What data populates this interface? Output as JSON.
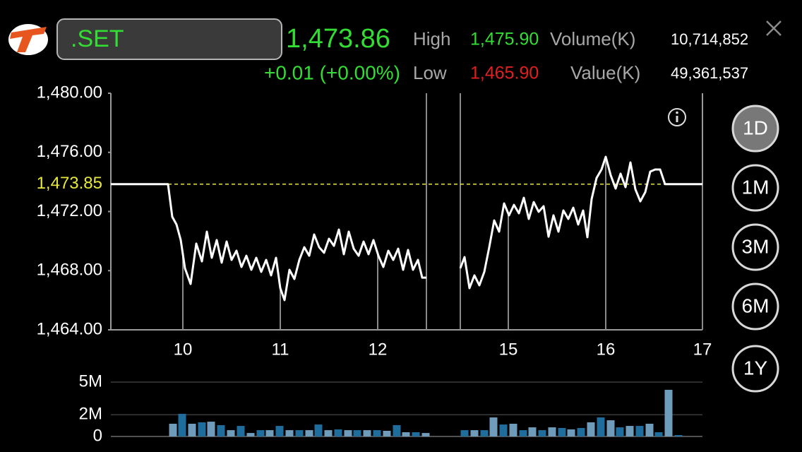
{
  "header": {
    "symbol": ".SET",
    "last": "1,473.86",
    "change": "+0.01 (+0.00%)",
    "high_label": "High",
    "high": "1,475.90",
    "low_label": "Low",
    "low": "1,465.90",
    "volume_label": "Volume(K)",
    "volume": "10,714,852",
    "value_label": "Value(K)",
    "value": "49,361,537"
  },
  "periods": [
    "1D",
    "1M",
    "3M",
    "6M",
    "1Y"
  ],
  "selected_period": "1D",
  "chart_data": [
    {
      "type": "line",
      "color": "#ffffff",
      "x": [
        0,
        81,
        87,
        93,
        99,
        105,
        113,
        121,
        129,
        136,
        143,
        150,
        157,
        164,
        171,
        178,
        185,
        192,
        199,
        206,
        213,
        220,
        227,
        234,
        240,
        246,
        253,
        260,
        267,
        274,
        281,
        288,
        295,
        302,
        309,
        316,
        323,
        330,
        337,
        344,
        351,
        358,
        365,
        372,
        379,
        386,
        393,
        400,
        407,
        414,
        421,
        428,
        435,
        441,
        447,
        null,
        495,
        501,
        508,
        515,
        522,
        529,
        536,
        543,
        550,
        557,
        564,
        571,
        578,
        585,
        592,
        599,
        606,
        613,
        620,
        627,
        634,
        641,
        648,
        655,
        662,
        669,
        675,
        681,
        688,
        695,
        701,
        708,
        715,
        722,
        729,
        736,
        743,
        750,
        757,
        764,
        771,
        778,
        785,
        838
      ],
      "values": [
        1473.85,
        1473.85,
        1471.64,
        1471.12,
        1470.07,
        1468.16,
        1467.1,
        1469.83,
        1468.63,
        1470.64,
        1468.87,
        1470.07,
        1468.54,
        1469.97,
        1468.73,
        1469.35,
        1468.25,
        1469.01,
        1468.06,
        1468.87,
        1467.92,
        1468.73,
        1467.68,
        1468.87,
        1466.82,
        1466.01,
        1468.06,
        1467.44,
        1468.73,
        1469.59,
        1469.01,
        1470.45,
        1469.59,
        1469.21,
        1470.16,
        1469.68,
        1470.78,
        1469.11,
        1470.64,
        1469.49,
        1469.01,
        1469.97,
        1469.11,
        1470.07,
        1469.01,
        1468.25,
        1469.35,
        1468.73,
        1469.49,
        1468.06,
        1469.4,
        1468.06,
        1468.73,
        1467.53,
        1467.53,
        null,
        1468.16,
        1468.92,
        1466.82,
        1467.68,
        1467.01,
        1467.92,
        1469.59,
        1471.4,
        1470.64,
        1472.55,
        1471.74,
        1472.45,
        1471.88,
        1472.93,
        1471.5,
        1472.64,
        1471.98,
        1472.36,
        1470.3,
        1471.74,
        1470.64,
        1472.07,
        1471.5,
        1472.26,
        1471.12,
        1472.07,
        1470.26,
        1472.84,
        1474.27,
        1474.84,
        1475.7,
        1474.46,
        1473.55,
        1474.56,
        1473.65,
        1475.32,
        1473.5,
        1472.69,
        1473.31,
        1474.7,
        1474.84,
        1474.84,
        1473.85,
        1473.85
      ],
      "xlim": [
        0,
        838
      ],
      "xticks": [
        {
          "value": 102,
          "label": "10"
        },
        {
          "value": 240,
          "label": "11"
        },
        {
          "value": 378,
          "label": "12"
        },
        {
          "value": 563,
          "label": "15"
        },
        {
          "value": 701,
          "label": "16"
        },
        {
          "value": 838,
          "label": "17"
        }
      ],
      "ylim": [
        1464,
        1480
      ],
      "yticks": [
        {
          "value": 1464,
          "label": "1,464.00"
        },
        {
          "value": 1468,
          "label": "1,468.00"
        },
        {
          "value": 1472,
          "label": "1,472.00"
        },
        {
          "value": 1476,
          "label": "1,476.00"
        },
        {
          "value": 1480,
          "label": "1,480.00"
        }
      ],
      "reference": {
        "value": 1473.85,
        "label": "1,473.85",
        "color": "#e8e83a"
      }
    },
    {
      "type": "bar",
      "colors": [
        "#6f9cbb",
        "#1f6d9c"
      ],
      "grid": true,
      "x": [
        88,
        101,
        115,
        129,
        142,
        156,
        170,
        184,
        198,
        212,
        225,
        239,
        253,
        267,
        281,
        294,
        308,
        322,
        336,
        349,
        363,
        377,
        391,
        405,
        418,
        432,
        446,
        501,
        515,
        529,
        542,
        556,
        570,
        584,
        597,
        611,
        625,
        639,
        652,
        666,
        680,
        694,
        708,
        721,
        735,
        749,
        763,
        776,
        790,
        804
      ],
      "values": [
        1170000,
        2080000,
        1170000,
        1300000,
        1360000,
        1040000,
        580000,
        970000,
        320000,
        580000,
        580000,
        970000,
        580000,
        580000,
        580000,
        1100000,
        580000,
        650000,
        580000,
        580000,
        580000,
        580000,
        520000,
        1040000,
        390000,
        390000,
        320000,
        580000,
        580000,
        580000,
        1750000,
        1100000,
        1170000,
        580000,
        840000,
        580000,
        840000,
        780000,
        650000,
        780000,
        1300000,
        1750000,
        1490000,
        840000,
        970000,
        970000,
        1170000,
        390000,
        4290000,
        130000
      ],
      "xlim": [
        0,
        838
      ],
      "ylim": [
        0,
        5000000
      ],
      "yticks": [
        0,
        {
          "value": 2000000,
          "label": "2M"
        },
        {
          "value": 5000000,
          "label": "5M"
        }
      ]
    }
  ]
}
